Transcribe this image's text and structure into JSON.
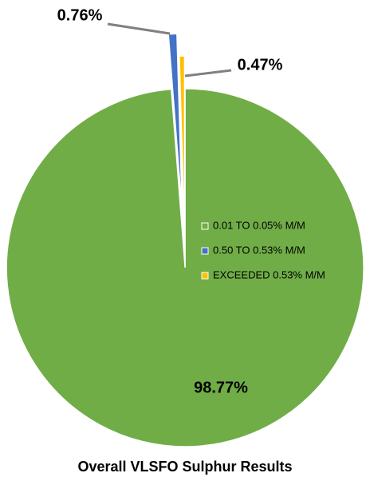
{
  "chart_data": {
    "type": "pie",
    "title": "Overall VLSFO Sulphur Results",
    "categories": [
      "0.01 TO 0.05% M/M",
      "0.50 TO 0.53% M/M",
      "EXCEEDED 0.53% M/M"
    ],
    "values": [
      98.77,
      0.76,
      0.47
    ],
    "value_labels": [
      "98.77%",
      "0.76%",
      "0.47%"
    ],
    "colors": [
      "#70ad47",
      "#4472c4",
      "#ffc000"
    ],
    "legend": "right"
  }
}
